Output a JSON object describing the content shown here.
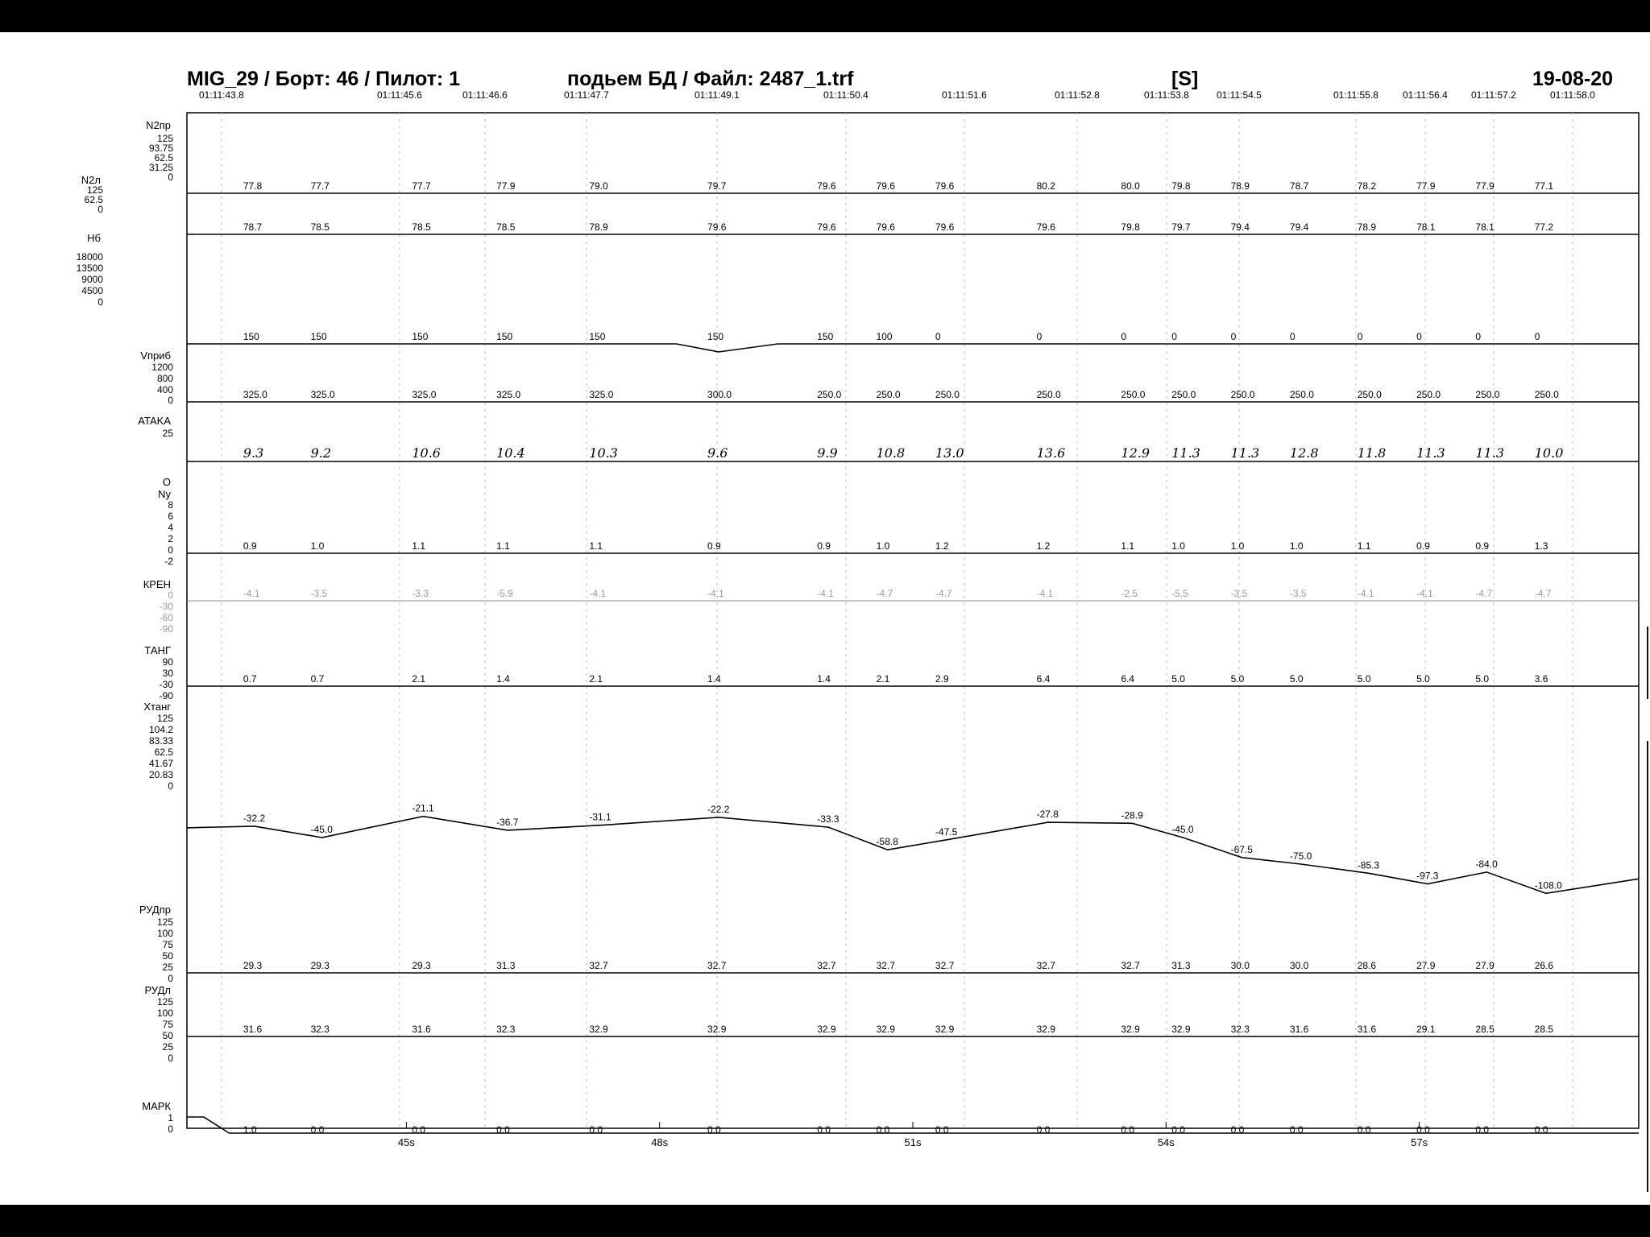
{
  "header": {
    "left": "MIG_29 / Борт: 46 / Пилот: 1",
    "center": "подьем БД / Файл: 2487_1.trf",
    "mode": "[S]",
    "date": "19-08-20"
  },
  "colors": {
    "page": "#ffffff",
    "ink": "#000000",
    "grid": "#9a9a9a",
    "frame": "#000000"
  },
  "chart_data": {
    "type": "line",
    "times": [
      "01:11:43.8",
      "01:11:45.6",
      "01:11:46.6",
      "01:11:47.7",
      "01:11:49.1",
      "01:11:50.4",
      "01:11:51.6",
      "01:11:52.8",
      "01:11:53.8",
      "01:11:54.5",
      "01:11:55.8",
      "01:11:56.4",
      "01:11:57.2",
      "01:11:58.0"
    ],
    "xticks": [
      "45s",
      "48s",
      "51s",
      "54s",
      "57s"
    ],
    "xlim": [
      42.4,
      59.6
    ],
    "xtick_values": [
      45,
      48,
      51,
      54,
      57
    ],
    "sample_x": [
      43.2,
      44.0,
      45.2,
      46.2,
      47.3,
      48.7,
      50.0,
      50.7,
      51.4,
      52.6,
      53.6,
      54.2,
      54.9,
      55.6,
      56.4,
      57.1,
      57.8,
      58.5
    ],
    "series": [
      {
        "name": "N2пр",
        "axis_ticks": [
          "125",
          "93.75",
          "62.5",
          "31.25",
          "0"
        ],
        "labels": [
          "77.8",
          "77.7",
          "77.7",
          "77.9",
          "79.0",
          "79.7",
          "79.6",
          "79.6",
          "79.6",
          "80.2",
          "80.0",
          "79.8",
          "78.9",
          "78.7",
          "78.2",
          "77.9",
          "77.9",
          "77.1"
        ]
      },
      {
        "name": "N2л",
        "axis_ticks": [
          "125",
          "62.5",
          "0"
        ],
        "labels": [
          "78.7",
          "78.5",
          "78.5",
          "78.5",
          "78.9",
          "79.6",
          "79.6",
          "79.6",
          "79.6",
          "79.6",
          "79.8",
          "79.7",
          "79.4",
          "79.4",
          "78.9",
          "78.1",
          "78.1",
          "77.2"
        ]
      },
      {
        "name": "Нб",
        "axis_ticks": [
          "18000",
          "13500",
          "9000",
          "4500",
          "0"
        ],
        "labels": [
          "150",
          "150",
          "150",
          "150",
          "150",
          "150",
          "150",
          "100",
          "0",
          "0",
          "0",
          "0",
          "0",
          "0",
          "0",
          "0",
          "0",
          "0"
        ]
      },
      {
        "name": "Vприб",
        "axis_ticks": [
          "1200",
          "800",
          "400",
          "0"
        ],
        "labels": [
          "325.0",
          "325.0",
          "325.0",
          "325.0",
          "325.0",
          "300.0",
          "250.0",
          "250.0",
          "250.0",
          "250.0",
          "250.0",
          "250.0",
          "250.0",
          "250.0",
          "250.0",
          "250.0",
          "250.0",
          "250.0"
        ]
      },
      {
        "name": "ATAKA",
        "axis_ticks": [
          "25"
        ],
        "labels": [
          "9.3",
          "9.2",
          "10.6",
          "10.4",
          "10.3",
          "9.6",
          "9.9",
          "10.8",
          "13.0",
          "13.6",
          "12.9",
          "11.3",
          "11.3",
          "12.8",
          "11.8",
          "11.3",
          "11.3",
          "10.0"
        ]
      },
      {
        "name": "Ny",
        "axis_ticks": [
          "8",
          "6",
          "4",
          "2",
          "0",
          "-2"
        ],
        "labels": [
          "0.9",
          "1.0",
          "1.1",
          "1.1",
          "1.1",
          "0.9",
          "0.9",
          "1.0",
          "1.2",
          "1.2",
          "1.1",
          "1.0",
          "1.0",
          "1.0",
          "1.1",
          "0.9",
          "0.9",
          "1.3"
        ]
      },
      {
        "name": "КРЕН",
        "axis_ticks": [
          "0",
          "-30",
          "-60",
          "-90"
        ],
        "labels": [
          "-4.1",
          "-3.5",
          "-3.3",
          "-5.9",
          "-4.1",
          "-4.1",
          "-4.1",
          "-4.7",
          "-4.7",
          "-4.1",
          "-2.5",
          "-5.5",
          "-3.5",
          "-3.5",
          "-4.1",
          "-4.1",
          "-4.7",
          "-4.7"
        ]
      },
      {
        "name": "ТАНГ",
        "axis_ticks": [
          "90",
          "30",
          "-30",
          "-90"
        ],
        "labels": [
          "0.7",
          "0.7",
          "2.1",
          "1.4",
          "2.1",
          "1.4",
          "1.4",
          "2.1",
          "2.9",
          "6.4",
          "6.4",
          "5.0",
          "5.0",
          "5.0",
          "5.0",
          "5.0",
          "5.0",
          "3.6"
        ]
      },
      {
        "name": "Хтанг",
        "axis_ticks": [
          "125",
          "104.2",
          "83.33",
          "62.5",
          "41.67",
          "20.83",
          "0"
        ],
        "labels": [
          "-32.2",
          "-45.0",
          "-21.1",
          "-36.7",
          "-31.1",
          "-22.2",
          "-33.3",
          "-58.8",
          "-47.5",
          "-27.8",
          "-28.9",
          "-45.0",
          "-67.5",
          "-75.0",
          "-85.3",
          "-97.3",
          "-84.0",
          "-108.0"
        ]
      },
      {
        "name": "РУДпр",
        "axis_ticks": [
          "125",
          "100",
          "75",
          "50",
          "25",
          "0"
        ],
        "labels": [
          "29.3",
          "29.3",
          "29.3",
          "31.3",
          "32.7",
          "32.7",
          "32.7",
          "32.7",
          "32.7",
          "32.7",
          "32.7",
          "31.3",
          "30.0",
          "30.0",
          "28.6",
          "27.9",
          "27.9",
          "26.6"
        ]
      },
      {
        "name": "РУДл",
        "axis_ticks": [
          "125",
          "100",
          "75",
          "50",
          "25",
          "0"
        ],
        "labels": [
          "31.6",
          "32.3",
          "31.6",
          "32.3",
          "32.9",
          "32.9",
          "32.9",
          "32.9",
          "32.9",
          "32.9",
          "32.9",
          "32.9",
          "32.3",
          "31.6",
          "31.6",
          "29.1",
          "28.5",
          "28.5"
        ]
      },
      {
        "name": "МАРК",
        "axis_ticks": [
          "1",
          "0"
        ],
        "labels": [
          "1.0",
          "0.0",
          "0.0",
          "0.0",
          "0.0",
          "0.0",
          "0.0",
          "0.0",
          "0.0",
          "0.0",
          "0.0",
          "0.0",
          "0.0",
          "0.0",
          "0.0",
          "0.0",
          "0.0",
          "0.0"
        ]
      }
    ],
    "stray_labels": [
      {
        "text": "O",
        "near": "ATAKA"
      }
    ]
  }
}
